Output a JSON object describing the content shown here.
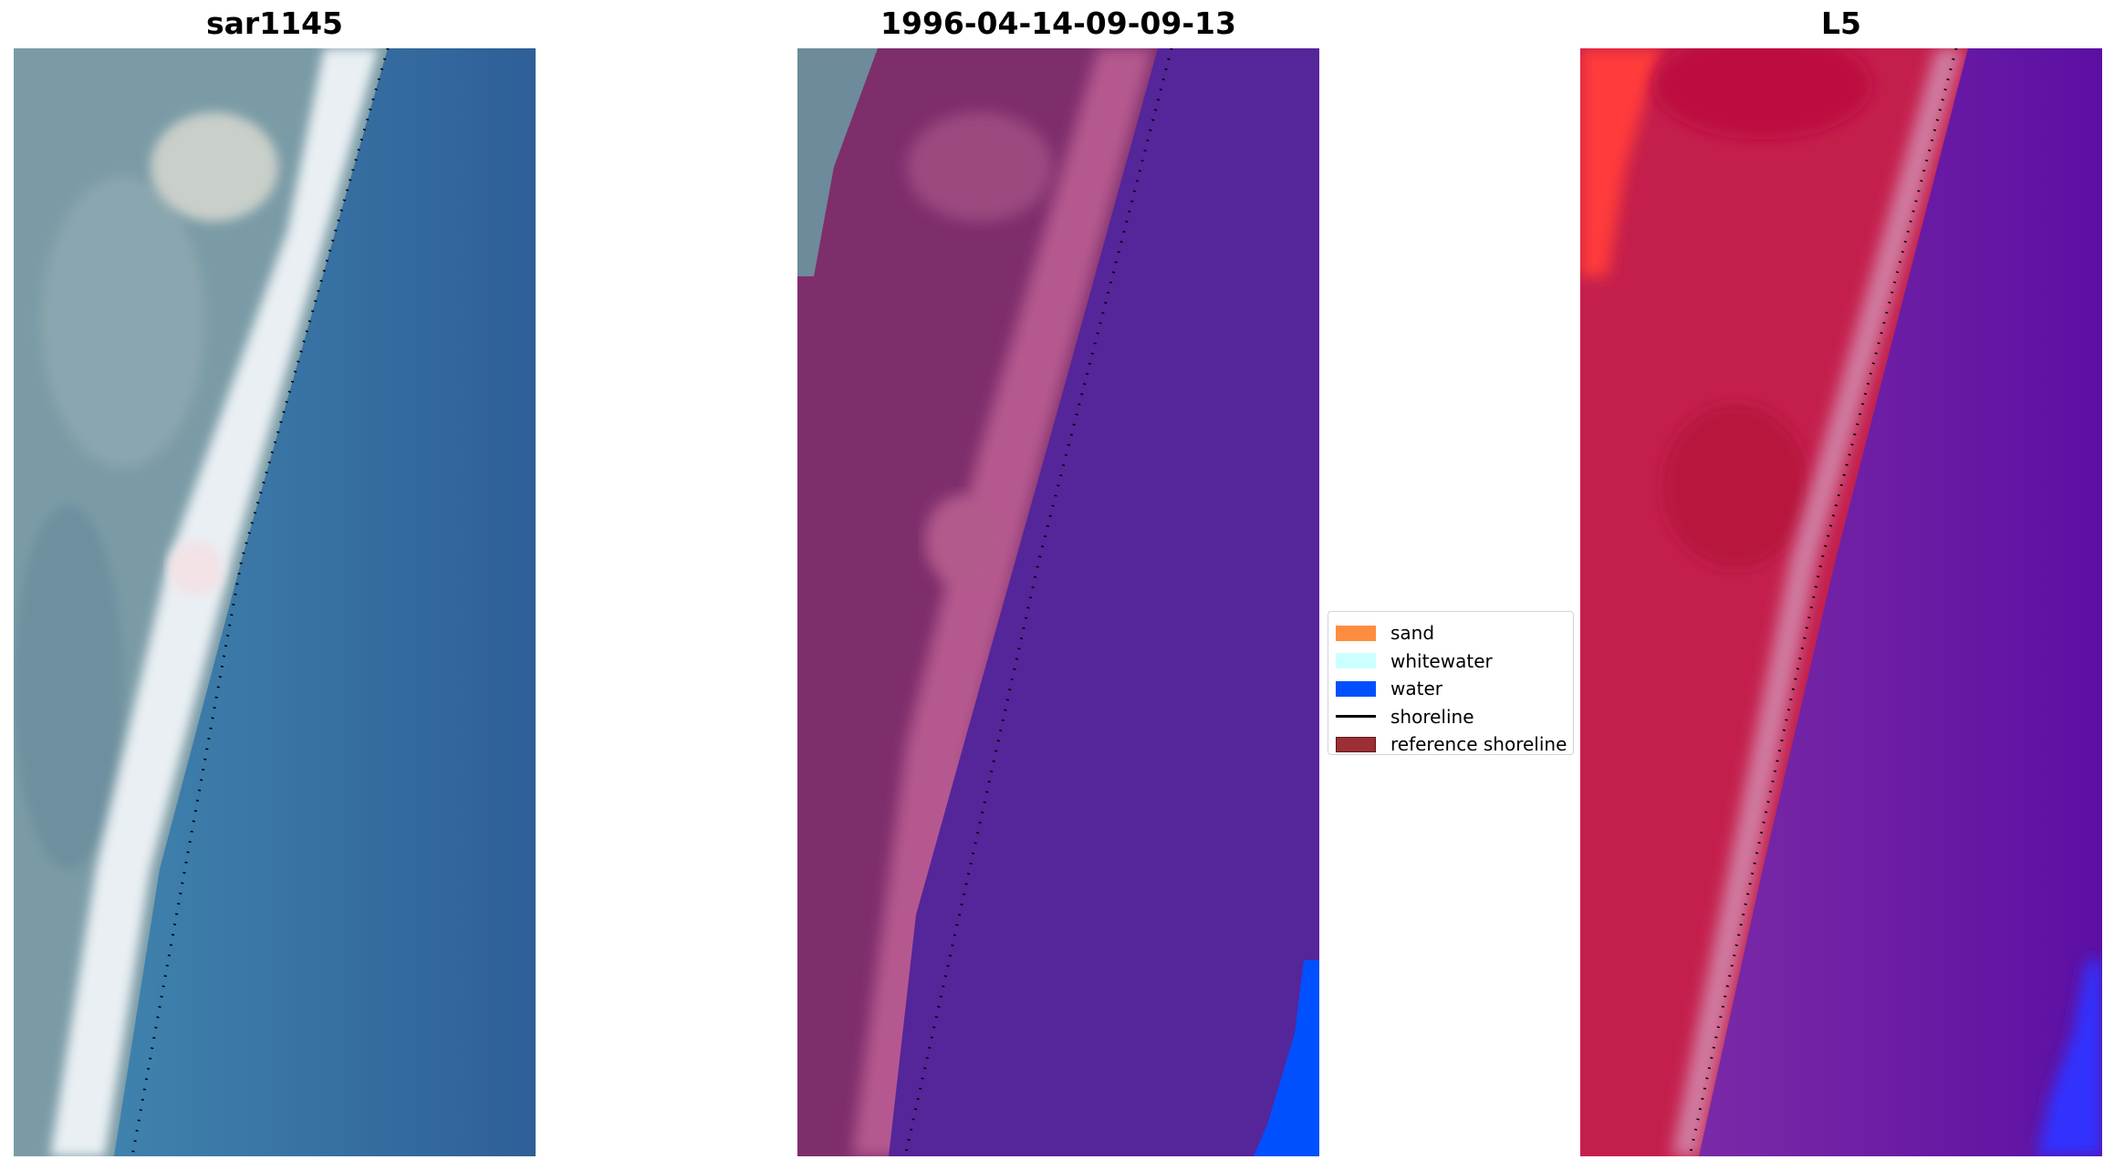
{
  "panels": [
    {
      "title": "sar1145",
      "view": "rgb"
    },
    {
      "title": "1996-04-14-09-09-13",
      "view": "classified"
    },
    {
      "title": "L5",
      "view": "index"
    }
  ],
  "legend": {
    "items": [
      {
        "label": "sand",
        "color": "#ff8c3f",
        "kind": "patch"
      },
      {
        "label": "whitewater",
        "color": "#ccffff",
        "kind": "patch"
      },
      {
        "label": "water",
        "color": "#0050ff",
        "kind": "patch"
      },
      {
        "label": "shoreline",
        "color": "#000000",
        "kind": "line"
      },
      {
        "label": "reference shoreline",
        "color": "#9b2f35",
        "kind": "patch"
      }
    ]
  },
  "colors": {
    "rgb_land": "#7a9ba6",
    "rgb_beach": "#f2f5f7",
    "rgb_sea": "#3a73a8",
    "class_land": "#7e2e6b",
    "class_sand": "#b5598f",
    "class_sea": "#55259a",
    "class_water": "#0050ff",
    "index_land": "#c01c48",
    "index_sea": "#6a18a6",
    "index_water": "#3333ff",
    "shoreline_dots": "#000000"
  }
}
